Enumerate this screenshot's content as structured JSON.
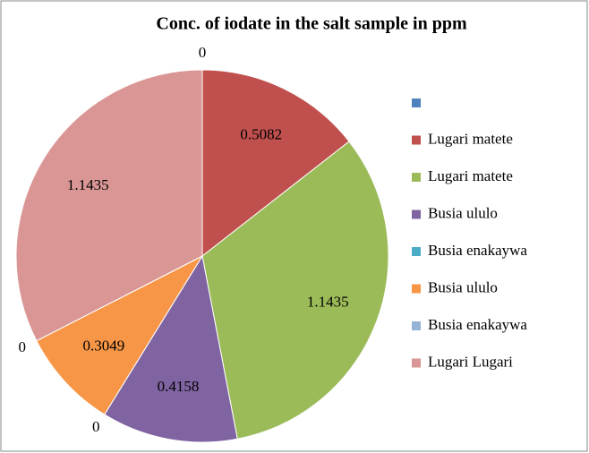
{
  "chart_data": {
    "type": "pie",
    "title": "Conc. of iodate in the salt sample in ppm",
    "categories": [
      null,
      "Lugari matete",
      "Lugari matete",
      "Busia ululo",
      "Busia enakaywa",
      "Busia ululo",
      "Busia enakaywa",
      "Lugari  Lugari"
    ],
    "values": [
      0,
      0.5082,
      1.1435,
      0.4158,
      0,
      0.3049,
      0,
      1.1435
    ],
    "colors": [
      "#4f81bd",
      "#c0504d",
      "#9bbb59",
      "#8064a2",
      "#4bacc6",
      "#f79646",
      "#95b3d7",
      "#d99694"
    ],
    "legend": "right"
  }
}
